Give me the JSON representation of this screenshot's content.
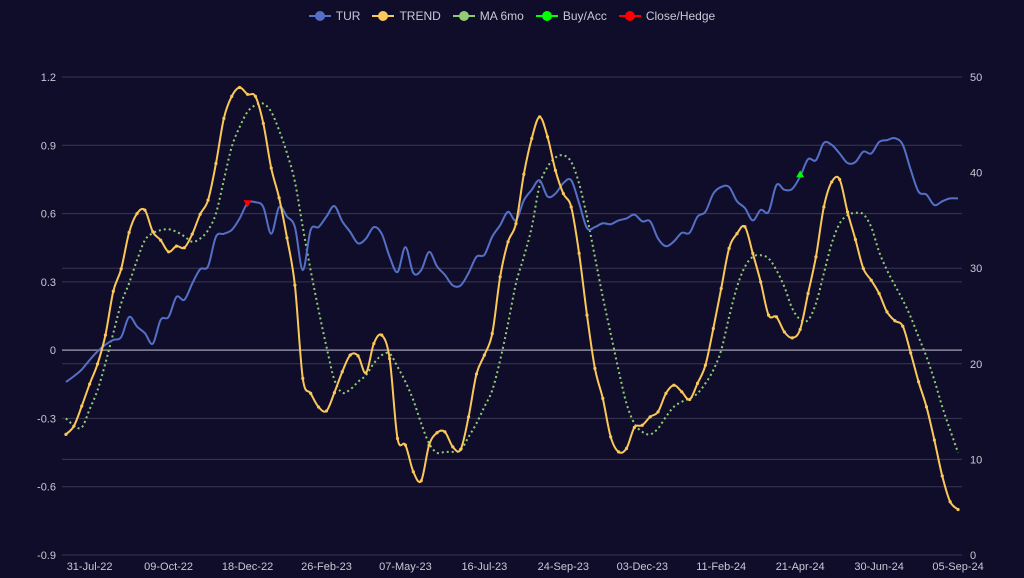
{
  "chart_data": {
    "type": "line",
    "legend_position": "top",
    "grid": true,
    "legend": [
      {
        "name": "TUR",
        "color": "#5470c6"
      },
      {
        "name": "TREND",
        "color": "#fac858"
      },
      {
        "name": "MA 6mo",
        "color": "#91cc75"
      },
      {
        "name": "Buy/Acc",
        "color": "#00ff00"
      },
      {
        "name": "Close/Hedge",
        "color": "#ff0000"
      }
    ],
    "x_tick_labels": [
      "31-Jul-22",
      "09-Oct-22",
      "18-Dec-22",
      "26-Feb-23",
      "07-May-23",
      "16-Jul-23",
      "24-Sep-23",
      "03-Dec-23",
      "11-Feb-24",
      "21-Apr-24",
      "30-Jun-24",
      "05-Sep-24"
    ],
    "x_frequency": "weekly",
    "y_left": {
      "ticks": [
        "1.2",
        "0.9",
        "0.6",
        "0.3",
        "0",
        "-0.3",
        "-0.6",
        "-0.9"
      ],
      "range": [
        -0.9,
        1.2
      ]
    },
    "y_right": {
      "ticks": [
        "50",
        "40",
        "30",
        "20",
        "10",
        "0"
      ],
      "range": [
        0,
        50
      ]
    },
    "series": [
      {
        "name": "TUR",
        "axis": "right",
        "color": "#5470c6",
        "style": "smooth-line",
        "values": [
          18.1,
          18.7,
          19.4,
          20.4,
          21.3,
          22.0,
          22.5,
          22.8,
          24.9,
          23.9,
          23.2,
          22.1,
          24.6,
          24.9,
          27.0,
          26.7,
          28.4,
          29.9,
          30.2,
          33.3,
          33.6,
          34.0,
          35.2,
          36.8,
          36.9,
          36.4,
          33.6,
          36.4,
          35.4,
          34.3,
          29.8,
          34.0,
          34.3,
          35.4,
          36.5,
          34.9,
          33.8,
          32.6,
          33.1,
          34.3,
          33.6,
          31.2,
          29.6,
          32.2,
          29.5,
          29.8,
          31.7,
          30.2,
          29.3,
          28.2,
          28.2,
          29.5,
          31.2,
          31.4,
          33.3,
          34.5,
          35.9,
          35.0,
          37.1,
          38.2,
          39.2,
          37.5,
          37.8,
          38.9,
          39.2,
          36.8,
          34.2,
          34.3,
          34.7,
          34.6,
          35.0,
          35.2,
          35.6,
          34.9,
          34.9,
          33.1,
          32.3,
          32.8,
          33.7,
          33.7,
          35.4,
          35.9,
          37.8,
          38.5,
          38.5,
          37.0,
          36.3,
          35.0,
          36.1,
          35.9,
          38.7,
          38.2,
          38.3,
          39.6,
          41.4,
          41.3,
          43.1,
          42.9,
          42.0,
          41.0,
          41.1,
          42.2,
          42.0,
          43.2,
          43.4,
          43.6,
          42.9,
          40.3,
          38.0,
          37.7,
          36.6,
          37.0,
          37.3,
          37.3
        ]
      },
      {
        "name": "TREND",
        "axis": "left",
        "color": "#fac858",
        "style": "smooth-line-with-points",
        "values": [
          -0.37,
          -0.334,
          -0.246,
          -0.149,
          -0.061,
          0.066,
          0.259,
          0.357,
          0.517,
          0.6,
          0.615,
          0.52,
          0.483,
          0.432,
          0.457,
          0.45,
          0.51,
          0.597,
          0.659,
          0.82,
          1.018,
          1.115,
          1.154,
          1.124,
          1.115,
          0.996,
          0.8,
          0.669,
          0.493,
          0.285,
          -0.124,
          -0.19,
          -0.25,
          -0.267,
          -0.187,
          -0.095,
          -0.022,
          -0.025,
          -0.1,
          0.029,
          0.066,
          -0.037,
          -0.388,
          -0.417,
          -0.534,
          -0.574,
          -0.417,
          -0.363,
          -0.359,
          -0.425,
          -0.436,
          -0.293,
          -0.105,
          -0.022,
          0.073,
          0.322,
          0.476,
          0.556,
          0.773,
          0.93,
          1.025,
          0.937,
          0.79,
          0.688,
          0.629,
          0.425,
          0.154,
          -0.08,
          -0.212,
          -0.381,
          -0.447,
          -0.432,
          -0.34,
          -0.33,
          -0.293,
          -0.271,
          -0.19,
          -0.154,
          -0.183,
          -0.217,
          -0.146,
          -0.066,
          0.095,
          0.271,
          0.447,
          0.512,
          0.542,
          0.425,
          0.3,
          0.154,
          0.146,
          0.08,
          0.054,
          0.091,
          0.249,
          0.41,
          0.629,
          0.739,
          0.75,
          0.607,
          0.486,
          0.359,
          0.307,
          0.249,
          0.168,
          0.129,
          0.105,
          -0.012,
          -0.139,
          -0.249,
          -0.395,
          -0.553,
          -0.666,
          -0.7
        ]
      },
      {
        "name": "MA 6mo",
        "axis": "left",
        "color": "#91cc75",
        "style": "dotted-line",
        "values": [
          -0.3,
          -0.33,
          -0.34,
          -0.26,
          -0.176,
          -0.057,
          0.075,
          0.206,
          0.294,
          0.395,
          0.483,
          0.514,
          0.527,
          0.531,
          0.52,
          0.5,
          0.476,
          0.49,
          0.527,
          0.6,
          0.747,
          0.893,
          0.98,
          1.047,
          1.076,
          1.083,
          1.047,
          0.966,
          0.865,
          0.74,
          0.54,
          0.35,
          0.176,
          0.015,
          -0.13,
          -0.187,
          -0.173,
          -0.139,
          -0.11,
          -0.058,
          -0.022,
          -0.015,
          -0.073,
          -0.139,
          -0.22,
          -0.322,
          -0.41,
          -0.451,
          -0.447,
          -0.447,
          -0.439,
          -0.381,
          -0.322,
          -0.249,
          -0.176,
          -0.044,
          0.117,
          0.293,
          0.41,
          0.54,
          0.725,
          0.805,
          0.846,
          0.856,
          0.827,
          0.732,
          0.585,
          0.41,
          0.234,
          0.073,
          -0.088,
          -0.234,
          -0.322,
          -0.359,
          -0.37,
          -0.344,
          -0.293,
          -0.249,
          -0.227,
          -0.212,
          -0.19,
          -0.146,
          -0.088,
          0.0,
          0.146,
          0.278,
          0.366,
          0.41,
          0.417,
          0.403,
          0.351,
          0.278,
          0.183,
          0.135,
          0.132,
          0.205,
          0.337,
          0.469,
          0.556,
          0.593,
          0.603,
          0.597,
          0.541,
          0.432,
          0.351,
          0.285,
          0.22,
          0.146,
          0.058,
          -0.029,
          -0.132,
          -0.249,
          -0.351,
          -0.451
        ]
      }
    ],
    "signals": [
      {
        "name": "Close/Hedge",
        "date": "18-Dec-22",
        "value": 36.8,
        "axis": "right",
        "marker": "triangle-down",
        "color": "#ff0000"
      },
      {
        "name": "Buy/Acc",
        "date": "21-Apr-24",
        "value": 39.6,
        "axis": "right",
        "marker": "triangle-up",
        "color": "#00ff00"
      }
    ]
  }
}
